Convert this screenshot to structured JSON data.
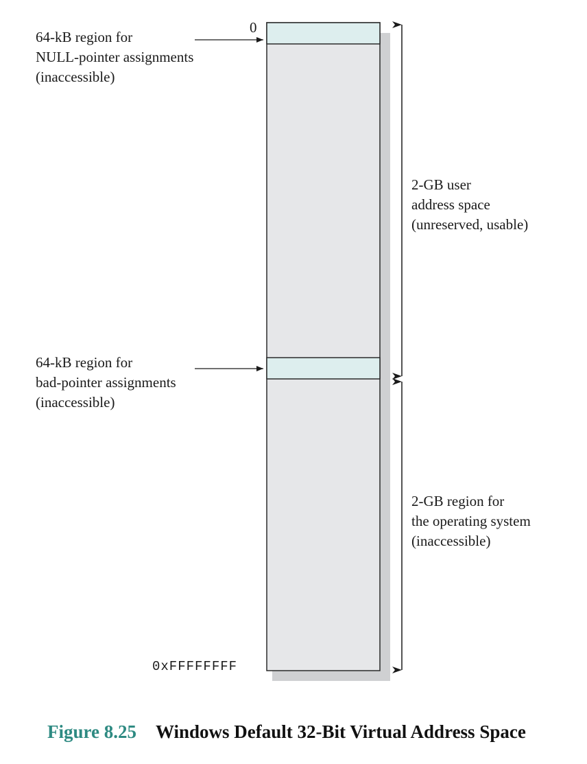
{
  "diagram": {
    "top_address": "0",
    "bottom_address": "0xFFFFFFFF",
    "null_region_label": [
      "64-kB region for",
      "NULL-pointer assignments",
      "(inaccessible)"
    ],
    "bad_pointer_region_label": [
      "64-kB region for",
      "bad-pointer assignments",
      "(inaccessible)"
    ],
    "user_space_label": [
      "2-GB user",
      "address space",
      "(unreserved, usable)"
    ],
    "os_region_label": [
      "2-GB region for",
      "the operating system",
      "(inaccessible)"
    ]
  },
  "caption": {
    "number": "Figure 8.25",
    "title": "Windows Default 32-Bit Virtual Address Space"
  },
  "colors": {
    "memory_fill": "#e6e7e9",
    "reserved_fill": "#ddeeee",
    "shadow": "#cfd0d2",
    "figure_number": "#2e8a82"
  }
}
